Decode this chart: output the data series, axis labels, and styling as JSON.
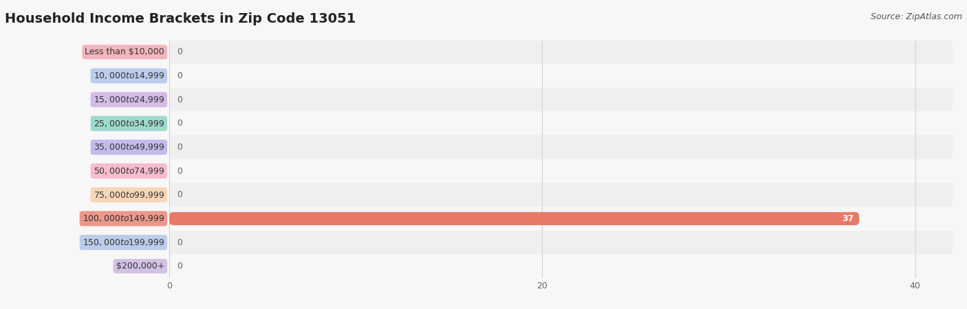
{
  "title": "Household Income Brackets in Zip Code 13051",
  "source": "Source: ZipAtlas.com",
  "categories": [
    "Less than $10,000",
    "$10,000 to $14,999",
    "$15,000 to $24,999",
    "$25,000 to $34,999",
    "$35,000 to $49,999",
    "$50,000 to $74,999",
    "$75,000 to $99,999",
    "$100,000 to $149,999",
    "$150,000 to $199,999",
    "$200,000+"
  ],
  "values": [
    0,
    0,
    0,
    0,
    0,
    0,
    0,
    37,
    0,
    0
  ],
  "bar_colors": [
    "#f0a0a8",
    "#a8c0e8",
    "#c8a8e0",
    "#80d0c0",
    "#b0a8e8",
    "#f8a8c0",
    "#f8cca0",
    "#e87868",
    "#a8c0e8",
    "#c8b0e0"
  ],
  "background_color": "#f7f7f7",
  "row_bg_even": "#efefef",
  "row_bg_odd": "#f7f7f7",
  "xlim": [
    0,
    42
  ],
  "xticks": [
    0,
    20,
    40
  ],
  "bar_height": 0.55,
  "value_label_color_active": "#ffffff",
  "value_label_color_zero": "#666666",
  "title_fontsize": 14,
  "source_fontsize": 9,
  "category_fontsize": 9,
  "tick_fontsize": 9,
  "value_fontsize": 9
}
